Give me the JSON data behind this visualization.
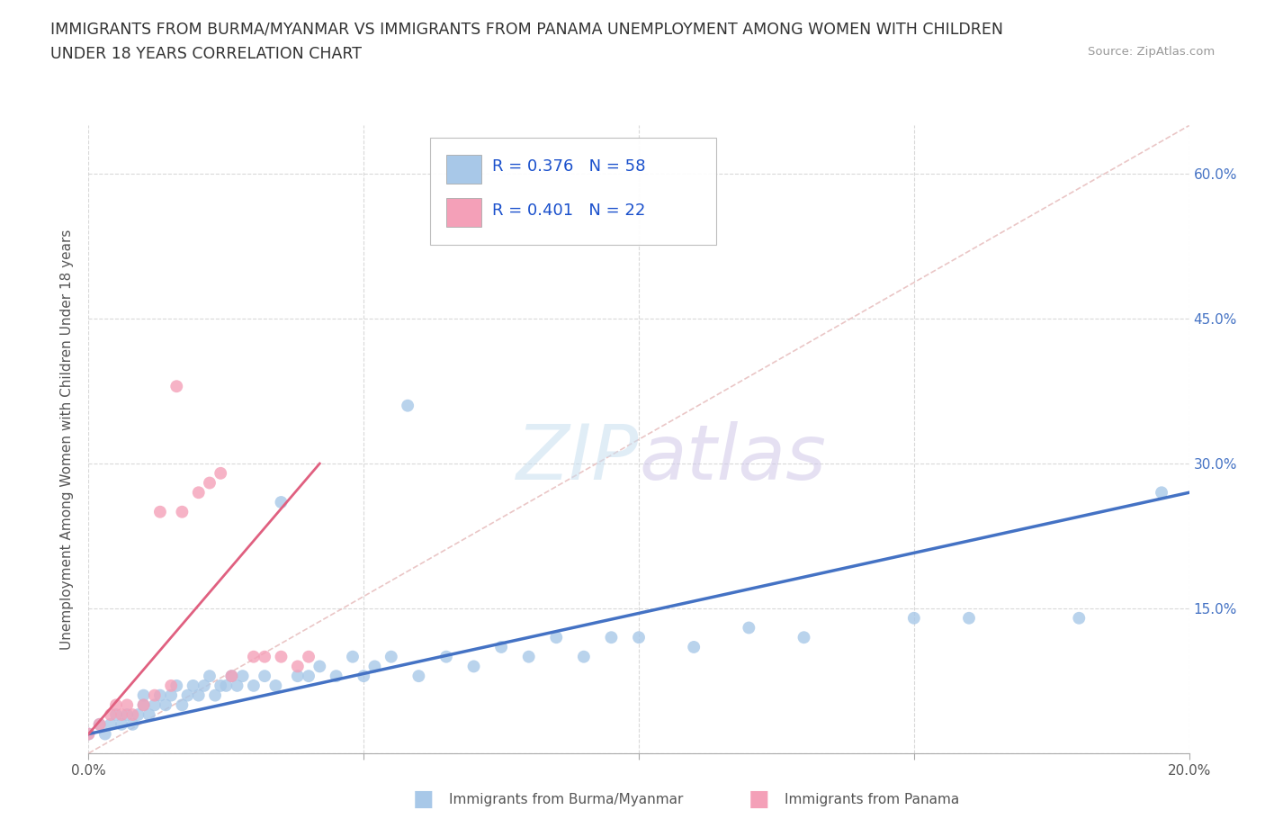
{
  "title_line1": "IMMIGRANTS FROM BURMA/MYANMAR VS IMMIGRANTS FROM PANAMA UNEMPLOYMENT AMONG WOMEN WITH CHILDREN",
  "title_line2": "UNDER 18 YEARS CORRELATION CHART",
  "source_text": "Source: ZipAtlas.com",
  "ylabel": "Unemployment Among Women with Children Under 18 years",
  "legend_label1": "Immigrants from Burma/Myanmar",
  "legend_label2": "Immigrants from Panama",
  "R1": 0.376,
  "N1": 58,
  "R2": 0.401,
  "N2": 22,
  "color1": "#a8c8e8",
  "color2": "#f4a0b8",
  "trendline1_color": "#4472c4",
  "trendline2_color": "#e06080",
  "diagonal_color": "#e8c0c0",
  "xlim": [
    0.0,
    0.2
  ],
  "ylim": [
    0.0,
    0.65
  ],
  "grid_color": "#d0d0d0",
  "background_color": "#ffffff",
  "scatter1_x": [
    0.0,
    0.002,
    0.003,
    0.004,
    0.005,
    0.006,
    0.007,
    0.008,
    0.009,
    0.01,
    0.01,
    0.011,
    0.012,
    0.013,
    0.014,
    0.015,
    0.016,
    0.017,
    0.018,
    0.019,
    0.02,
    0.021,
    0.022,
    0.023,
    0.024,
    0.025,
    0.026,
    0.027,
    0.028,
    0.03,
    0.032,
    0.034,
    0.035,
    0.038,
    0.04,
    0.042,
    0.045,
    0.048,
    0.05,
    0.052,
    0.055,
    0.058,
    0.06,
    0.065,
    0.07,
    0.075,
    0.08,
    0.085,
    0.09,
    0.095,
    0.1,
    0.11,
    0.12,
    0.13,
    0.15,
    0.16,
    0.18,
    0.195
  ],
  "scatter1_y": [
    0.02,
    0.03,
    0.02,
    0.03,
    0.04,
    0.03,
    0.04,
    0.03,
    0.04,
    0.05,
    0.06,
    0.04,
    0.05,
    0.06,
    0.05,
    0.06,
    0.07,
    0.05,
    0.06,
    0.07,
    0.06,
    0.07,
    0.08,
    0.06,
    0.07,
    0.07,
    0.08,
    0.07,
    0.08,
    0.07,
    0.08,
    0.07,
    0.26,
    0.08,
    0.08,
    0.09,
    0.08,
    0.1,
    0.08,
    0.09,
    0.1,
    0.36,
    0.08,
    0.1,
    0.09,
    0.11,
    0.1,
    0.12,
    0.1,
    0.12,
    0.12,
    0.11,
    0.13,
    0.12,
    0.14,
    0.14,
    0.14,
    0.27
  ],
  "scatter2_x": [
    0.0,
    0.002,
    0.004,
    0.005,
    0.006,
    0.007,
    0.008,
    0.01,
    0.012,
    0.013,
    0.015,
    0.016,
    0.017,
    0.02,
    0.022,
    0.024,
    0.026,
    0.03,
    0.032,
    0.035,
    0.038,
    0.04
  ],
  "scatter2_y": [
    0.02,
    0.03,
    0.04,
    0.05,
    0.04,
    0.05,
    0.04,
    0.05,
    0.06,
    0.25,
    0.07,
    0.38,
    0.25,
    0.27,
    0.28,
    0.29,
    0.08,
    0.1,
    0.1,
    0.1,
    0.09,
    0.1
  ]
}
